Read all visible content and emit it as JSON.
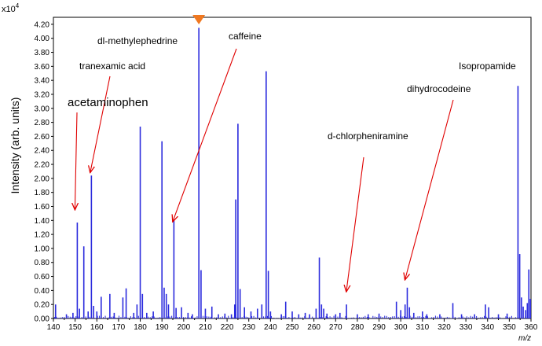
{
  "chart_data": {
    "type": "bar",
    "title": "",
    "ylabel": "Intensity (arb. units)",
    "xlabel": "m/z",
    "y_multiplier": "x10",
    "y_multiplier_exp": "4",
    "xlim": [
      140,
      360
    ],
    "ylim": [
      0,
      4.3
    ],
    "xticks": [
      "140",
      "150",
      "160",
      "170",
      "180",
      "190",
      "200",
      "210",
      "220",
      "230",
      "240",
      "250",
      "260",
      "270",
      "280",
      "290",
      "300",
      "310",
      "320",
      "330",
      "340",
      "350",
      "360"
    ],
    "yticks": [
      "0.00",
      "0.20",
      "0.40",
      "0.60",
      "0.80",
      "1.00",
      "1.20",
      "1.40",
      "1.60",
      "1.80",
      "2.00",
      "2.20",
      "2.40",
      "2.60",
      "2.80",
      "3.00",
      "3.20",
      "3.40",
      "3.60",
      "3.80",
      "4.00",
      "4.20"
    ],
    "peaks": [
      [
        141,
        0.2
      ],
      [
        146,
        0.06
      ],
      [
        149,
        0.08
      ],
      [
        151,
        1.37
      ],
      [
        152,
        0.14
      ],
      [
        154,
        1.03
      ],
      [
        156,
        0.1
      ],
      [
        157.5,
        2.04
      ],
      [
        158.5,
        0.18
      ],
      [
        160,
        0.1
      ],
      [
        162,
        0.31
      ],
      [
        166,
        0.35
      ],
      [
        168,
        0.08
      ],
      [
        172,
        0.3
      ],
      [
        173.5,
        0.43
      ],
      [
        177,
        0.08
      ],
      [
        178.5,
        0.2
      ],
      [
        180,
        2.74
      ],
      [
        181,
        0.35
      ],
      [
        183,
        0.08
      ],
      [
        186,
        0.1
      ],
      [
        190,
        2.53
      ],
      [
        191,
        0.44
      ],
      [
        192,
        0.35
      ],
      [
        193,
        0.2
      ],
      [
        195.5,
        1.41
      ],
      [
        196.5,
        0.15
      ],
      [
        199,
        0.16
      ],
      [
        202,
        0.08
      ],
      [
        204,
        0.06
      ],
      [
        207,
        4.15
      ],
      [
        208,
        0.69
      ],
      [
        210,
        0.14
      ],
      [
        213,
        0.17
      ],
      [
        216,
        0.06
      ],
      [
        219,
        0.07
      ],
      [
        222,
        0.06
      ],
      [
        223.5,
        0.2
      ],
      [
        224,
        1.7
      ],
      [
        225,
        2.78
      ],
      [
        226,
        0.42
      ],
      [
        228,
        0.16
      ],
      [
        231,
        0.1
      ],
      [
        234,
        0.14
      ],
      [
        236,
        0.2
      ],
      [
        238,
        3.53
      ],
      [
        239,
        0.68
      ],
      [
        240,
        0.1
      ],
      [
        245,
        0.06
      ],
      [
        247,
        0.24
      ],
      [
        250,
        0.1
      ],
      [
        253,
        0.06
      ],
      [
        256,
        0.08
      ],
      [
        258,
        0.06
      ],
      [
        261,
        0.14
      ],
      [
        262.5,
        0.87
      ],
      [
        263.5,
        0.2
      ],
      [
        264.5,
        0.14
      ],
      [
        266,
        0.07
      ],
      [
        270,
        0.06
      ],
      [
        272,
        0.08
      ],
      [
        275,
        0.2
      ],
      [
        280,
        0.06
      ],
      [
        285,
        0.06
      ],
      [
        290,
        0.07
      ],
      [
        298,
        0.24
      ],
      [
        300,
        0.12
      ],
      [
        302,
        0.2
      ],
      [
        303,
        0.44
      ],
      [
        304,
        0.16
      ],
      [
        306,
        0.08
      ],
      [
        310,
        0.1
      ],
      [
        312,
        0.06
      ],
      [
        318,
        0.06
      ],
      [
        324,
        0.22
      ],
      [
        328,
        0.06
      ],
      [
        334,
        0.06
      ],
      [
        339,
        0.2
      ],
      [
        340.5,
        0.16
      ],
      [
        345,
        0.06
      ],
      [
        349,
        0.07
      ],
      [
        354,
        3.32
      ],
      [
        354.8,
        0.92
      ],
      [
        355.6,
        0.3
      ],
      [
        356.4,
        0.17
      ],
      [
        357.5,
        0.12
      ],
      [
        358.3,
        0.22
      ],
      [
        359,
        0.7
      ],
      [
        359.7,
        0.28
      ]
    ],
    "marker_x": 207,
    "colors": {
      "spectrum": "#2B2BDD",
      "arrow": "#E00000",
      "marker": "#F07820"
    },
    "annotations": [
      {
        "label": "acetaminophen",
        "target_x": 151,
        "target_y": 1.55,
        "big": true
      },
      {
        "label": "tranexamic acid",
        "target_x": 158,
        "target_y": 2.08
      },
      {
        "label": "dl-methylephedrine",
        "target_x": 207
      },
      {
        "label": "caffeine",
        "target_x": 196,
        "target_y": 1.38
      },
      {
        "label": "d-chlorpheniramine",
        "target_x": 276,
        "target_y": 0.38
      },
      {
        "label": "dihydrocodeine",
        "target_x": 303,
        "target_y": 0.55
      },
      {
        "label": "Isopropamide",
        "target_x": 354
      }
    ]
  }
}
